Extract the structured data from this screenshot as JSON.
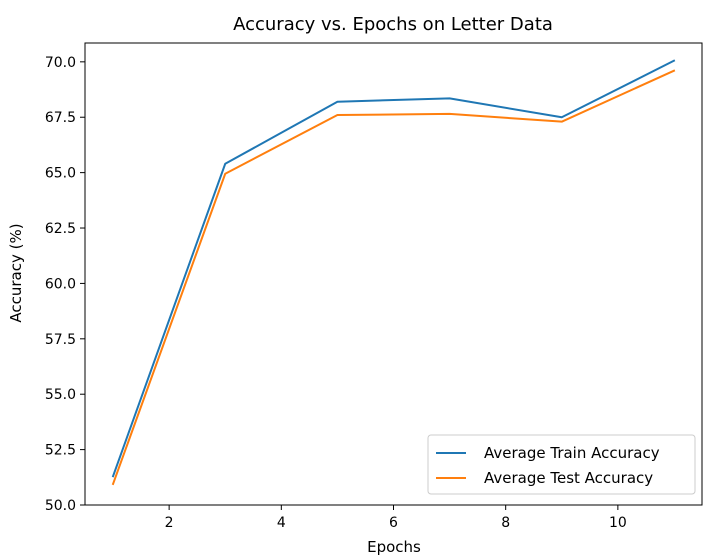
{
  "chart_data": {
    "type": "line",
    "title": "Accuracy vs. Epochs on Letter Data",
    "xlabel": "Epochs",
    "ylabel": "Accuracy (%)",
    "xlim": [
      0.5,
      11.5
    ],
    "ylim": [
      50.0,
      70.85
    ],
    "x_ticks": [
      2,
      4,
      6,
      8,
      10
    ],
    "y_ticks": [
      50.0,
      52.5,
      55.0,
      57.5,
      60.0,
      62.5,
      65.0,
      67.5,
      70.0
    ],
    "y_tick_labels": [
      "50.0",
      "52.5",
      "55.0",
      "57.5",
      "60.0",
      "62.5",
      "65.0",
      "67.5",
      "70.0"
    ],
    "x": [
      1,
      3,
      5,
      7,
      9,
      11
    ],
    "series": [
      {
        "name": "Average Train Accuracy",
        "color": "#1f77b4",
        "values": [
          51.3,
          65.4,
          68.2,
          68.35,
          67.5,
          70.05
        ]
      },
      {
        "name": "Average Test Accuracy",
        "color": "#ff7f0e",
        "values": [
          50.95,
          64.95,
          67.6,
          67.65,
          67.3,
          69.6
        ]
      }
    ],
    "legend_position": "lower-right",
    "grid": false
  }
}
